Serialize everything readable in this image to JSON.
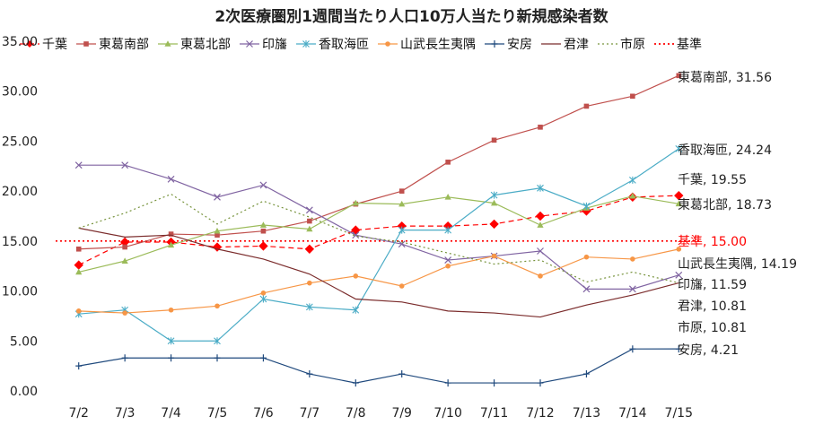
{
  "chart_data": {
    "type": "line",
    "title": "2次医療圏別1週間当たり人口10万人当たり新規感染者数",
    "xlabel": "",
    "ylabel": "",
    "ylim": [
      0,
      35
    ],
    "yticks": [
      "0.00",
      "5.00",
      "10.00",
      "15.00",
      "20.00",
      "25.00",
      "30.00",
      "35.00"
    ],
    "grid": false,
    "legend_position": "top",
    "categories": [
      "7/2",
      "7/3",
      "7/4",
      "7/5",
      "7/6",
      "7/7",
      "7/8",
      "7/9",
      "7/10",
      "7/11",
      "7/12",
      "7/13",
      "7/14",
      "7/15"
    ],
    "series": [
      {
        "name": "千葉",
        "color": "#ff0000",
        "marker": "diamond",
        "dash": "6,4",
        "values": [
          12.6,
          14.9,
          14.9,
          14.4,
          14.5,
          14.2,
          16.1,
          16.5,
          16.5,
          16.7,
          17.5,
          18.0,
          19.4,
          19.55
        ],
        "end_label": "千葉, 19.55"
      },
      {
        "name": "東葛南部",
        "color": "#c0504d",
        "marker": "square",
        "dash": "",
        "values": [
          14.2,
          14.4,
          15.7,
          15.6,
          16.0,
          17.0,
          18.7,
          20.0,
          22.9,
          25.1,
          26.4,
          28.5,
          29.5,
          31.56
        ],
        "end_label": "東葛南部, 31.56"
      },
      {
        "name": "東葛北部",
        "color": "#9bbb59",
        "marker": "triangle",
        "dash": "",
        "values": [
          11.9,
          13.0,
          14.6,
          16.0,
          16.6,
          16.2,
          18.8,
          18.7,
          19.4,
          18.8,
          16.6,
          18.3,
          19.5,
          18.73
        ],
        "end_label": "東葛北部, 18.73"
      },
      {
        "name": "印旛",
        "color": "#8064a2",
        "marker": "x",
        "dash": "",
        "values": [
          22.6,
          22.6,
          21.2,
          19.4,
          20.6,
          18.1,
          15.6,
          14.7,
          13.1,
          13.5,
          14.0,
          10.2,
          10.2,
          11.59
        ],
        "end_label": "印旛, 11.59"
      },
      {
        "name": "香取海匝",
        "color": "#4bacc6",
        "marker": "star",
        "dash": "",
        "values": [
          7.7,
          8.1,
          5.0,
          5.0,
          9.2,
          8.4,
          8.1,
          16.1,
          16.1,
          19.6,
          20.3,
          18.5,
          21.1,
          24.24
        ],
        "end_label": "香取海匝, 24.24"
      },
      {
        "name": "山武長生夷隅",
        "color": "#f79646",
        "marker": "circle",
        "dash": "",
        "values": [
          8.0,
          7.8,
          8.1,
          8.5,
          9.8,
          10.8,
          11.5,
          10.5,
          12.5,
          13.5,
          11.5,
          13.4,
          13.2,
          14.19
        ],
        "end_label": "山武長生夷隅, 14.19"
      },
      {
        "name": "安房",
        "color": "#1f497d",
        "marker": "plus",
        "dash": "",
        "values": [
          2.5,
          3.3,
          3.3,
          3.3,
          3.3,
          1.7,
          0.8,
          1.7,
          0.8,
          0.8,
          0.8,
          1.7,
          4.2,
          4.21
        ],
        "end_label": "安房, 4.21"
      },
      {
        "name": "君津",
        "color": "#7b2c2c",
        "marker": "none",
        "dash": "",
        "values": [
          16.3,
          15.4,
          15.6,
          14.2,
          13.2,
          11.7,
          9.2,
          8.9,
          8.0,
          7.8,
          7.4,
          8.6,
          9.6,
          10.81
        ],
        "end_label": "君津, 10.81"
      },
      {
        "name": "市原",
        "color": "#77933c",
        "marker": "none",
        "dash": "2,3",
        "values": [
          16.3,
          17.8,
          19.7,
          16.7,
          19.0,
          17.4,
          15.5,
          14.9,
          13.8,
          12.7,
          13.1,
          10.9,
          11.9,
          10.81
        ],
        "end_label": "市原, 10.81"
      },
      {
        "name": "基準",
        "color": "#ff0000",
        "marker": "none",
        "dash": "2,3",
        "values": [
          15.0,
          15.0,
          15.0,
          15.0,
          15.0,
          15.0,
          15.0,
          15.0,
          15.0,
          15.0,
          15.0,
          15.0,
          15.0,
          15.0
        ],
        "end_label": "基準, 15.00",
        "end_label_name": "基準,",
        "end_label_value": "15.00"
      }
    ]
  }
}
